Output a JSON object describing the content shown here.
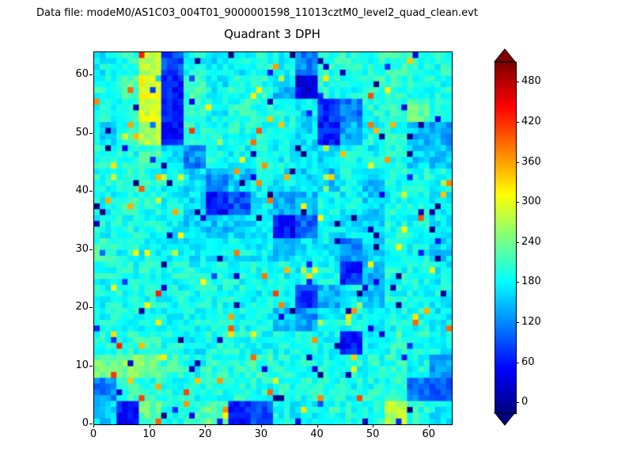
{
  "annotation": {
    "data_file": "Data file: modeM0/AS1C03_004T01_9000001598_11013cztM0_level2_quad_clean.evt"
  },
  "colors": {
    "background": "#ffffff",
    "frame": "#000000",
    "colorbar_under_arrow": "#00007f",
    "colorbar_over_arrow": "#7f0000"
  },
  "chart_data": {
    "type": "heatmap",
    "title": "Quadrant 3 DPH",
    "xlabel": "",
    "ylabel": "",
    "x_range": [
      0,
      64
    ],
    "y_range": [
      0,
      64
    ],
    "x_ticks": [
      0,
      10,
      20,
      30,
      40,
      50,
      60
    ],
    "y_ticks": [
      0,
      10,
      20,
      30,
      40,
      50,
      60
    ],
    "colormap": "jet",
    "colorbar_ticks": [
      0,
      60,
      120,
      180,
      240,
      300,
      360,
      420,
      480
    ],
    "value_range": [
      -15,
      510
    ],
    "grid_size": 64,
    "coarse_block_size": 4,
    "values_coarse_row_order": "top_to_bottom",
    "values_coarse": [
      [
        180,
        200,
        280,
        90,
        185,
        170,
        180,
        195,
        185,
        120,
        200,
        200,
        200,
        205,
        200,
        195
      ],
      [
        195,
        215,
        300,
        60,
        210,
        175,
        200,
        195,
        150,
        40,
        195,
        195,
        200,
        205,
        200,
        195
      ],
      [
        195,
        200,
        290,
        60,
        205,
        185,
        200,
        195,
        190,
        170,
        70,
        110,
        195,
        200,
        230,
        195
      ],
      [
        170,
        200,
        270,
        60,
        200,
        195,
        200,
        195,
        190,
        165,
        60,
        140,
        190,
        200,
        150,
        140
      ],
      [
        195,
        195,
        210,
        160,
        120,
        190,
        185,
        190,
        185,
        170,
        170,
        185,
        180,
        195,
        160,
        150
      ],
      [
        195,
        200,
        200,
        185,
        165,
        130,
        155,
        180,
        175,
        165,
        150,
        185,
        150,
        195,
        195,
        190
      ],
      [
        180,
        200,
        195,
        185,
        170,
        60,
        90,
        175,
        140,
        150,
        185,
        180,
        160,
        190,
        195,
        175
      ],
      [
        190,
        195,
        195,
        180,
        165,
        150,
        165,
        170,
        60,
        100,
        180,
        175,
        165,
        190,
        190,
        180
      ],
      [
        210,
        190,
        185,
        175,
        175,
        180,
        180,
        175,
        150,
        170,
        175,
        120,
        160,
        185,
        190,
        165
      ],
      [
        190,
        195,
        195,
        190,
        190,
        195,
        190,
        190,
        185,
        185,
        185,
        70,
        150,
        190,
        195,
        180
      ],
      [
        190,
        195,
        190,
        190,
        190,
        190,
        190,
        185,
        185,
        80,
        140,
        180,
        160,
        190,
        195,
        185
      ],
      [
        190,
        195,
        190,
        185,
        190,
        190,
        190,
        185,
        150,
        130,
        185,
        185,
        185,
        190,
        190,
        180
      ],
      [
        195,
        200,
        200,
        190,
        175,
        195,
        195,
        190,
        190,
        185,
        185,
        60,
        185,
        195,
        195,
        185
      ],
      [
        240,
        250,
        245,
        210,
        190,
        200,
        200,
        210,
        195,
        195,
        190,
        190,
        195,
        200,
        190,
        130
      ],
      [
        120,
        205,
        200,
        195,
        190,
        200,
        200,
        195,
        200,
        195,
        195,
        190,
        195,
        200,
        110,
        90
      ],
      [
        160,
        60,
        230,
        195,
        210,
        230,
        70,
        90,
        180,
        185,
        200,
        195,
        195,
        280,
        200,
        170
      ]
    ]
  }
}
